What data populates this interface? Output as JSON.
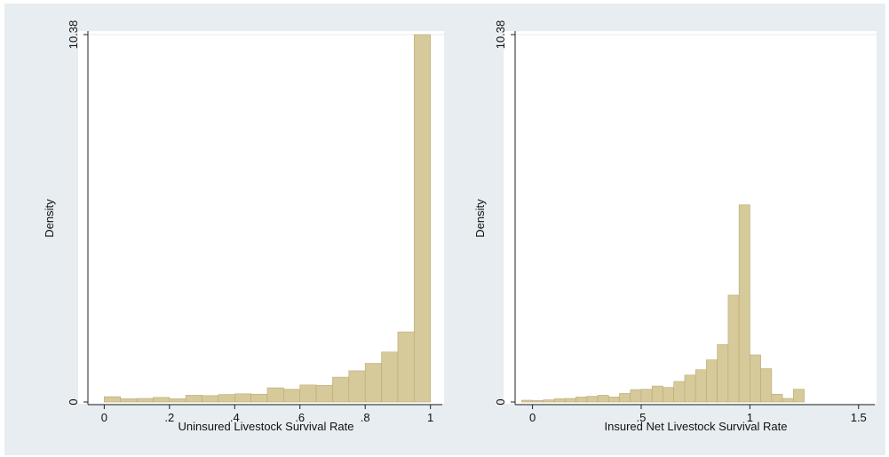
{
  "colors": {
    "background": "#e7edf0",
    "plot_area": "#ffffff",
    "bar_fill": "#d6c99a",
    "bar_stroke": "#b9aa76",
    "axis": "#222222",
    "gridline": "#e4eaed"
  },
  "chart_data": [
    {
      "type": "bar",
      "subtype": "histogram",
      "xlabel": "Uninsured Livestock Survival Rate",
      "ylabel": "Density",
      "xlim": [
        -0.05,
        1.02
      ],
      "ylim": [
        0,
        10.38
      ],
      "xticks": [
        0,
        0.2,
        0.4,
        0.6,
        0.8,
        1
      ],
      "xtick_labels": [
        "0",
        ".2",
        ".4",
        ".6",
        ".8",
        "1"
      ],
      "yticks": [
        0,
        10.38
      ],
      "ytick_labels": [
        "0",
        "10.38"
      ],
      "bin_width": 0.05,
      "bin_starts": [
        0,
        0.05,
        0.1,
        0.15,
        0.2,
        0.25,
        0.3,
        0.35,
        0.4,
        0.45,
        0.5,
        0.55,
        0.6,
        0.65,
        0.7,
        0.75,
        0.8,
        0.85,
        0.9,
        0.95
      ],
      "values": [
        0.15,
        0.09,
        0.1,
        0.13,
        0.09,
        0.19,
        0.18,
        0.21,
        0.23,
        0.22,
        0.4,
        0.36,
        0.48,
        0.47,
        0.7,
        0.88,
        1.09,
        1.41,
        1.98,
        10.38
      ],
      "grid": false,
      "legend": "none"
    },
    {
      "type": "bar",
      "subtype": "histogram",
      "xlabel": "Insured Net Livestock Survival Rate",
      "ylabel": "Density",
      "xlim": [
        -0.08,
        1.55
      ],
      "ylim": [
        0,
        10.38
      ],
      "xticks": [
        0,
        0.5,
        1,
        1.5
      ],
      "xtick_labels": [
        "0",
        ".5",
        "1",
        "1.5"
      ],
      "yticks": [
        0,
        10.38
      ],
      "ytick_labels": [
        "0",
        "10.38"
      ],
      "bin_width": 0.05,
      "bin_starts": [
        -0.05,
        0,
        0.05,
        0.1,
        0.15,
        0.2,
        0.25,
        0.3,
        0.35,
        0.4,
        0.45,
        0.5,
        0.55,
        0.6,
        0.65,
        0.7,
        0.75,
        0.8,
        0.85,
        0.9,
        0.95,
        1.0,
        1.05,
        1.1,
        1.15,
        1.2
      ],
      "values": [
        0.05,
        0.04,
        0.06,
        0.09,
        0.1,
        0.14,
        0.16,
        0.19,
        0.14,
        0.24,
        0.35,
        0.36,
        0.45,
        0.41,
        0.58,
        0.76,
        0.91,
        1.19,
        1.62,
        3.02,
        5.57,
        1.33,
        0.94,
        0.22,
        0.1,
        0.36
      ],
      "grid": false,
      "legend": "none"
    }
  ]
}
